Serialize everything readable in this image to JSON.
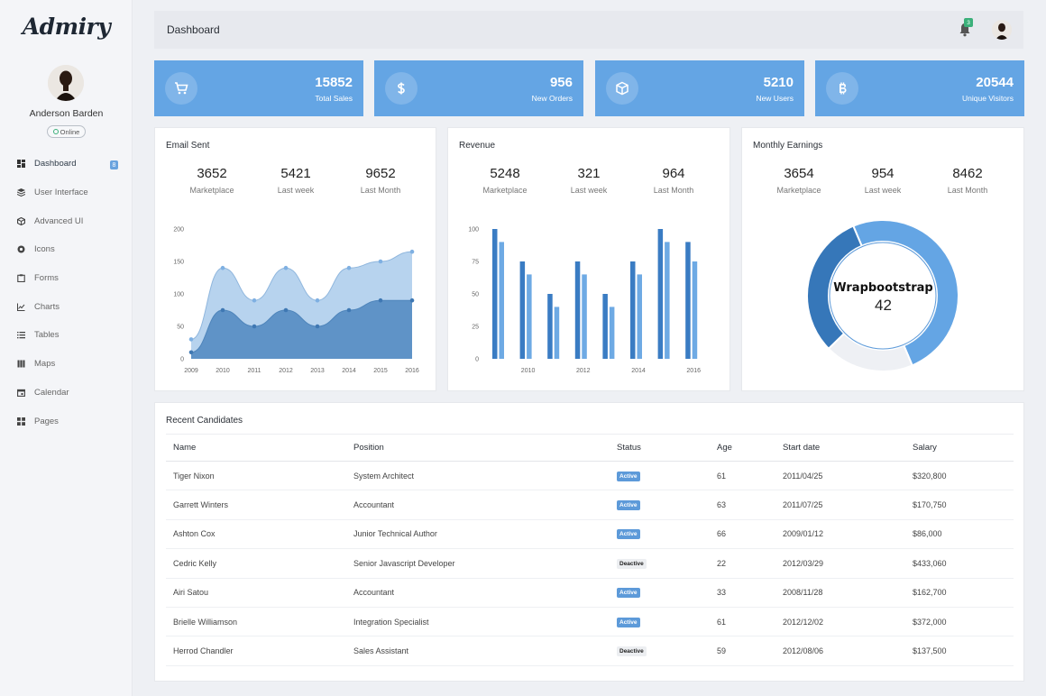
{
  "brand": {
    "logo": "Admiry"
  },
  "profile": {
    "name": "Anderson Barden",
    "status": "Online"
  },
  "sidebar": {
    "items": [
      {
        "label": "Dashboard",
        "icon": "dashboard-icon",
        "badge": "8",
        "active": true
      },
      {
        "label": "User Interface",
        "icon": "layers-icon"
      },
      {
        "label": "Advanced UI",
        "icon": "cube-icon"
      },
      {
        "label": "Icons",
        "icon": "circle-icon"
      },
      {
        "label": "Forms",
        "icon": "clipboard-icon"
      },
      {
        "label": "Charts",
        "icon": "line-chart-icon"
      },
      {
        "label": "Tables",
        "icon": "list-icon"
      },
      {
        "label": "Maps",
        "icon": "map-icon"
      },
      {
        "label": "Calendar",
        "icon": "calendar-icon"
      },
      {
        "label": "Pages",
        "icon": "pages-icon"
      }
    ]
  },
  "header": {
    "title": "Dashboard",
    "notification_count": "3"
  },
  "stats": [
    {
      "value": "15852",
      "label": "Total Sales",
      "icon": "cart-icon"
    },
    {
      "value": "956",
      "label": "New Orders",
      "icon": "dollar-icon"
    },
    {
      "value": "5210",
      "label": "New Users",
      "icon": "box-icon"
    },
    {
      "value": "20544",
      "label": "Unique Visitors",
      "icon": "bitcoin-icon"
    }
  ],
  "panels": {
    "email": {
      "title": "Email Sent",
      "kpis": [
        {
          "value": "3652",
          "label": "Marketplace"
        },
        {
          "value": "5421",
          "label": "Last week"
        },
        {
          "value": "9652",
          "label": "Last Month"
        }
      ]
    },
    "revenue": {
      "title": "Revenue",
      "kpis": [
        {
          "value": "5248",
          "label": "Marketplace"
        },
        {
          "value": "321",
          "label": "Last week"
        },
        {
          "value": "964",
          "label": "Last Month"
        }
      ]
    },
    "earnings": {
      "title": "Monthly Earnings",
      "kpis": [
        {
          "value": "3654",
          "label": "Marketplace"
        },
        {
          "value": "954",
          "label": "Last week"
        },
        {
          "value": "8462",
          "label": "Last Month"
        }
      ]
    }
  },
  "chart_data": [
    {
      "type": "area",
      "x": [
        "2009",
        "2010",
        "2011",
        "2012",
        "2013",
        "2014",
        "2015",
        "2016"
      ],
      "ylim": [
        0,
        200
      ],
      "yticks": [
        0,
        50,
        100,
        150,
        200
      ],
      "series": [
        {
          "values": [
            30,
            140,
            90,
            140,
            90,
            140,
            150,
            165
          ],
          "color": "#b7d3ee"
        },
        {
          "values": [
            10,
            75,
            50,
            75,
            50,
            75,
            90,
            90
          ],
          "color": "#5f93c7"
        }
      ]
    },
    {
      "type": "bar",
      "x": [
        "2009",
        "2010",
        "2011",
        "2012",
        "2013",
        "2014",
        "2015",
        "2016"
      ],
      "xtick_labels": [
        "",
        "2010",
        "",
        "2012",
        "",
        "2014",
        "",
        "2016"
      ],
      "ylim": [
        0,
        100
      ],
      "yticks": [
        0,
        25,
        50,
        75,
        100
      ],
      "series": [
        {
          "values": [
            100,
            75,
            50,
            75,
            50,
            75,
            100,
            90
          ],
          "color": "#3a7cc3"
        },
        {
          "values": [
            90,
            65,
            40,
            65,
            40,
            65,
            90,
            75
          ],
          "color": "#6eaae4"
        }
      ]
    },
    {
      "type": "pie",
      "donut": true,
      "center_label": "Wrapbootstrap",
      "center_value": "42",
      "slices": [
        {
          "value": 42,
          "color": "#64a5e4"
        },
        {
          "value": 16,
          "color": "#eef0f4"
        },
        {
          "value": 26,
          "color": "#3677b9"
        }
      ]
    }
  ],
  "table": {
    "title": "Recent Candidates",
    "columns": [
      "Name",
      "Position",
      "Status",
      "Age",
      "Start date",
      "Salary"
    ],
    "rows": [
      [
        "Tiger Nixon",
        "System Architect",
        "Active",
        "61",
        "2011/04/25",
        "$320,800"
      ],
      [
        "Garrett Winters",
        "Accountant",
        "Active",
        "63",
        "2011/07/25",
        "$170,750"
      ],
      [
        "Ashton Cox",
        "Junior Technical Author",
        "Active",
        "66",
        "2009/01/12",
        "$86,000"
      ],
      [
        "Cedric Kelly",
        "Senior Javascript Developer",
        "Deactive",
        "22",
        "2012/03/29",
        "$433,060"
      ],
      [
        "Airi Satou",
        "Accountant",
        "Active",
        "33",
        "2008/11/28",
        "$162,700"
      ],
      [
        "Brielle Williamson",
        "Integration Specialist",
        "Active",
        "61",
        "2012/12/02",
        "$372,000"
      ],
      [
        "Herrod Chandler",
        "Sales Assistant",
        "Deactive",
        "59",
        "2012/08/06",
        "$137,500"
      ]
    ]
  }
}
